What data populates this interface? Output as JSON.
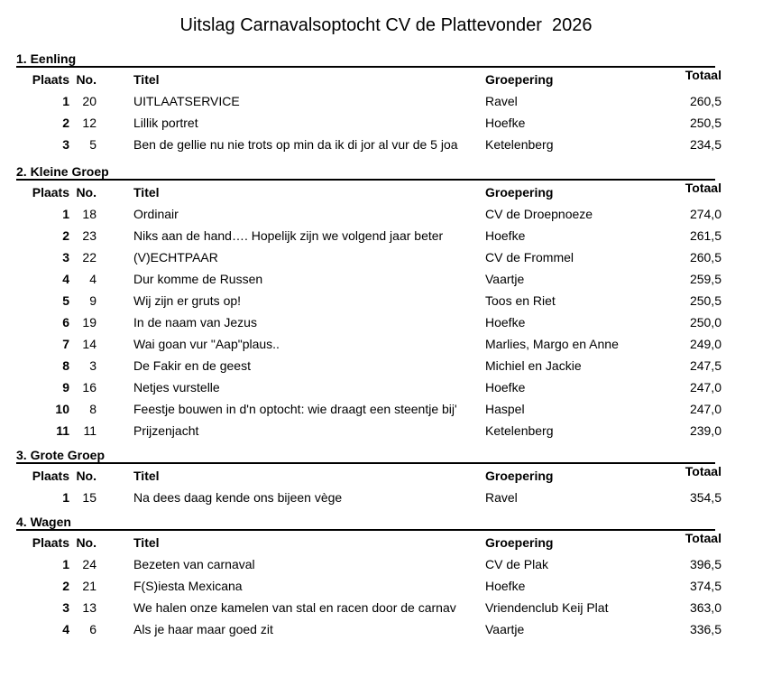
{
  "title": "Uitslag Carnavalsoptocht CV de Plattevonder  2026",
  "columns": {
    "plaats": "Plaats",
    "no": "No.",
    "titel": "Titel",
    "groepering": "Groepering",
    "totaal": "Totaal"
  },
  "sections": [
    {
      "heading": "1. Eenling",
      "rows": [
        {
          "plaats": "1",
          "no": "20",
          "titel": "UITLAATSERVICE",
          "groepering": "Ravel",
          "totaal": "260,5"
        },
        {
          "plaats": "2",
          "no": "12",
          "titel": "Lillik portret",
          "groepering": "Hoefke",
          "totaal": "250,5"
        },
        {
          "plaats": "3",
          "no": "5",
          "titel": "Ben de gellie nu nie trots op min da ik di jor al vur de 5 joa",
          "groepering": "Ketelenberg",
          "totaal": "234,5"
        }
      ]
    },
    {
      "heading": "2. Kleine Groep",
      "rows": [
        {
          "plaats": "1",
          "no": "18",
          "titel": "Ordinair",
          "groepering": "CV de Droepnoeze",
          "totaal": "274,0"
        },
        {
          "plaats": "2",
          "no": "23",
          "titel": "Niks aan de hand…. Hopelijk zijn we volgend jaar beter",
          "groepering": "Hoefke",
          "totaal": "261,5"
        },
        {
          "plaats": "3",
          "no": "22",
          "titel": "(V)ECHTPAAR",
          "groepering": "CV de Frommel",
          "totaal": "260,5"
        },
        {
          "plaats": "4",
          "no": "4",
          "titel": "Dur komme de Russen",
          "groepering": "Vaartje",
          "totaal": "259,5"
        },
        {
          "plaats": "5",
          "no": "9",
          "titel": "Wij zijn er gruts op!",
          "groepering": "Toos en Riet",
          "totaal": "250,5"
        },
        {
          "plaats": "6",
          "no": "19",
          "titel": "In de naam van Jezus",
          "groepering": "Hoefke",
          "totaal": "250,0"
        },
        {
          "plaats": "7",
          "no": "14",
          "titel": "Wai goan vur \"Aap\"plaus..",
          "groepering": "Marlies, Margo en Anne",
          "totaal": "249,0"
        },
        {
          "plaats": "8",
          "no": "3",
          "titel": "De Fakir en de geest",
          "groepering": "Michiel en Jackie",
          "totaal": "247,5"
        },
        {
          "plaats": "9",
          "no": "16",
          "titel": "Netjes vurstelle",
          "groepering": "Hoefke",
          "totaal": "247,0"
        },
        {
          "plaats": "10",
          "no": "8",
          "titel": "Feestje bouwen in d'n optocht: wie draagt een steentje bij'",
          "groepering": "Haspel",
          "totaal": "247,0"
        },
        {
          "plaats": "11",
          "no": "11",
          "titel": "Prijzenjacht",
          "groepering": "Ketelenberg",
          "totaal": "239,0"
        }
      ]
    },
    {
      "heading": "3. Grote Groep",
      "rows": [
        {
          "plaats": "1",
          "no": "15",
          "titel": "Na dees daag kende ons bijeen vège",
          "groepering": "Ravel",
          "totaal": "354,5"
        }
      ]
    },
    {
      "heading": "4. Wagen",
      "rows": [
        {
          "plaats": "1",
          "no": "24",
          "titel": "Bezeten van carnaval",
          "groepering": "CV de Plak",
          "totaal": "396,5"
        },
        {
          "plaats": "2",
          "no": "21",
          "titel": "F(S)iesta Mexicana",
          "groepering": "Hoefke",
          "totaal": "374,5"
        },
        {
          "plaats": "3",
          "no": "13",
          "titel": "We halen onze kamelen van stal en racen door de carnav",
          "groepering": "Vriendenclub Keij Plat",
          "totaal": "363,0"
        },
        {
          "plaats": "4",
          "no": "6",
          "titel": "Als je haar maar goed zit",
          "groepering": "Vaartje",
          "totaal": "336,5"
        }
      ]
    }
  ]
}
